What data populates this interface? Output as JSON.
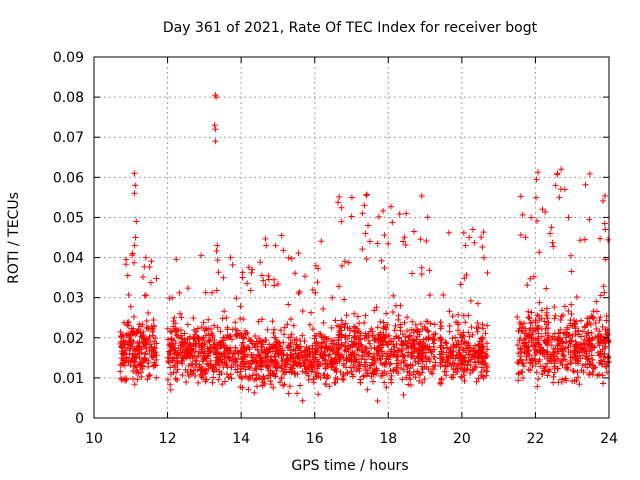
{
  "chart_data": {
    "type": "scatter",
    "title": "Day 361 of 2021, Rate Of TEC Index for receiver bogt",
    "xlabel": "GPS time / hours",
    "ylabel": "ROTI / TECUs",
    "xlim": [
      10,
      24
    ],
    "ylim": [
      0,
      0.09
    ],
    "xticks": [
      10,
      12,
      14,
      16,
      18,
      20,
      22,
      24
    ],
    "xtick_labels": [
      "10",
      "12",
      "14",
      "16",
      "18",
      "20",
      "22",
      "24"
    ],
    "yticks": [
      0,
      0.01,
      0.02,
      0.03,
      0.04,
      0.05,
      0.06,
      0.07,
      0.08,
      0.09
    ],
    "ytick_labels": [
      "0",
      "0.01",
      "0.02",
      "0.03",
      "0.04",
      "0.05",
      "0.06",
      "0.07",
      "0.08",
      "0.09"
    ],
    "grid": true,
    "marker": "+",
    "color": "#ff0000",
    "series": [
      {
        "name": "ROTI",
        "clusters": [
          {
            "x_start": 10.7,
            "x_end": 11.7,
            "y_center": 0.017,
            "y_spread": 0.007,
            "y_min": 0.005,
            "y_max": 0.043,
            "count": 240
          },
          {
            "x_start": 12.0,
            "x_end": 14.2,
            "y_center": 0.016,
            "y_spread": 0.007,
            "y_min": 0.002,
            "y_max": 0.042,
            "count": 470
          },
          {
            "x_start": 14.2,
            "x_end": 16.6,
            "y_center": 0.015,
            "y_spread": 0.007,
            "y_min": 0.004,
            "y_max": 0.045,
            "count": 500
          },
          {
            "x_start": 16.6,
            "x_end": 19.3,
            "y_center": 0.017,
            "y_spread": 0.008,
            "y_min": 0.004,
            "y_max": 0.056,
            "count": 560
          },
          {
            "x_start": 19.4,
            "x_end": 20.7,
            "y_center": 0.016,
            "y_spread": 0.007,
            "y_min": 0.003,
            "y_max": 0.047,
            "count": 260
          },
          {
            "x_start": 21.5,
            "x_end": 24.0,
            "y_center": 0.018,
            "y_spread": 0.008,
            "y_min": 0.005,
            "y_max": 0.062,
            "count": 540
          }
        ],
        "spikes": [
          {
            "x": 11.1,
            "y": 0.061
          },
          {
            "x": 11.12,
            "y": 0.058
          },
          {
            "x": 11.1,
            "y": 0.056
          },
          {
            "x": 11.15,
            "y": 0.049
          },
          {
            "x": 11.13,
            "y": 0.045
          },
          {
            "x": 11.05,
            "y": 0.041
          },
          {
            "x": 11.1,
            "y": 0.043
          },
          {
            "x": 13.3,
            "y": 0.0805
          },
          {
            "x": 13.32,
            "y": 0.08
          },
          {
            "x": 13.28,
            "y": 0.073
          },
          {
            "x": 13.3,
            "y": 0.072
          },
          {
            "x": 13.3,
            "y": 0.069
          },
          {
            "x": 13.35,
            "y": 0.043
          },
          {
            "x": 15.1,
            "y": 0.0455
          },
          {
            "x": 14.3,
            "y": 0.037
          },
          {
            "x": 17.4,
            "y": 0.0555
          },
          {
            "x": 17.35,
            "y": 0.053
          },
          {
            "x": 17.3,
            "y": 0.051
          },
          {
            "x": 17.45,
            "y": 0.048
          },
          {
            "x": 17.38,
            "y": 0.046
          },
          {
            "x": 17.5,
            "y": 0.044
          },
          {
            "x": 18.4,
            "y": 0.044
          },
          {
            "x": 20.3,
            "y": 0.047
          },
          {
            "x": 20.2,
            "y": 0.045
          },
          {
            "x": 20.1,
            "y": 0.043
          },
          {
            "x": 22.6,
            "y": 0.061
          },
          {
            "x": 22.7,
            "y": 0.062
          },
          {
            "x": 22.55,
            "y": 0.058
          },
          {
            "x": 22.8,
            "y": 0.057
          },
          {
            "x": 22.65,
            "y": 0.055
          },
          {
            "x": 22.9,
            "y": 0.05
          },
          {
            "x": 22.4,
            "y": 0.046
          },
          {
            "x": 23.9,
            "y": 0.047
          }
        ]
      }
    ]
  }
}
